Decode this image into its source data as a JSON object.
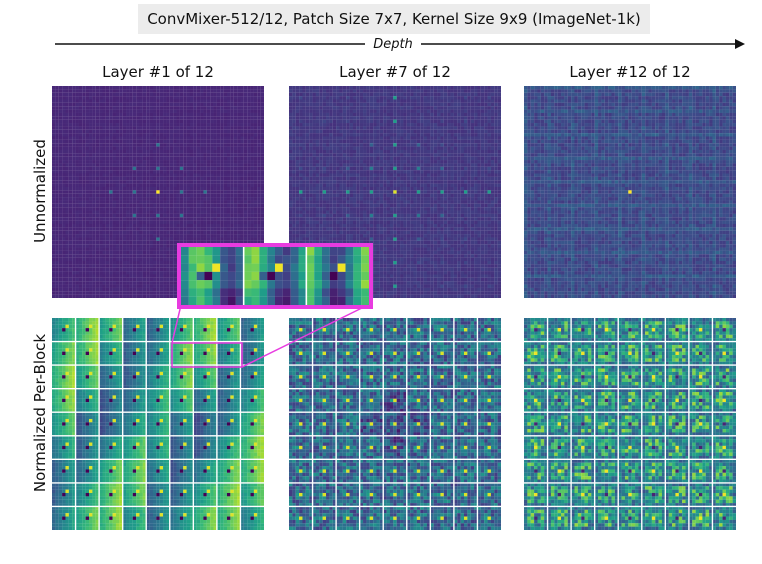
{
  "figure": {
    "title": "ConvMixer-512/12, Patch Size 7x7, Kernel Size 9x9 (ImageNet-1k)",
    "axis_label": "Depth",
    "columns": [
      {
        "label": "Layer #1 of 12"
      },
      {
        "label": "Layer #7 of 12"
      },
      {
        "label": "Layer #12 of 12"
      }
    ],
    "rows": [
      {
        "label": "Unnormalized"
      },
      {
        "label": "Normalized Per-Block"
      }
    ],
    "colors": {
      "viridis_dark": "#440154",
      "viridis_purple": "#482777",
      "viridis_blue": "#31688e",
      "viridis_teal": "#21918c",
      "viridis_green": "#35b779",
      "viridis_lime": "#90d743",
      "viridis_yellow": "#fde725",
      "highlight": "#e83be0",
      "title_bg": "#ececec"
    }
  }
}
